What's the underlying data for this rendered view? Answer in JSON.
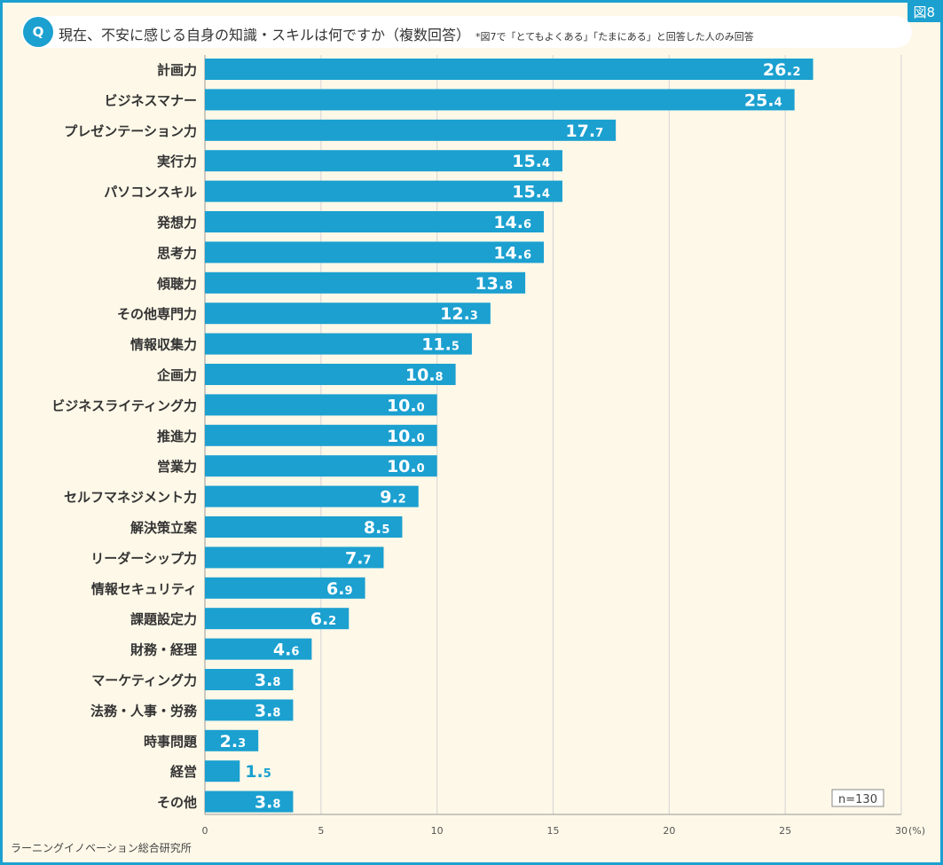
{
  "figure_label": "図8",
  "q_badge": "Q",
  "title": "現在、不安に感じる自身の知識・スキルは何ですか（複数回答）",
  "title_note": "*図7で「とてもよくある」「たまにある」と回答した人のみ回答",
  "sample_size": "n=130",
  "source": "ラーニングイノベーション総合研究所",
  "colors": {
    "bar": "#1ba0d0",
    "accent": "#1ba0d0",
    "background": "#fdf8e8"
  },
  "chart_data": {
    "type": "bar",
    "orientation": "horizontal",
    "categories": [
      "計画力",
      "ビジネスマナー",
      "プレゼンテーション力",
      "実行力",
      "パソコンスキル",
      "発想力",
      "思考力",
      "傾聴力",
      "その他専門力",
      "情報収集力",
      "企画力",
      "ビジネスライティング力",
      "推進力",
      "営業力",
      "セルフマネジメント力",
      "解決策立案",
      "リーダーシップ力",
      "情報セキュリティ",
      "課題設定力",
      "財務・経理",
      "マーケティング力",
      "法務・人事・労務",
      "時事問題",
      "経営",
      "その他"
    ],
    "values": [
      26.2,
      25.4,
      17.7,
      15.4,
      15.4,
      14.6,
      14.6,
      13.8,
      12.3,
      11.5,
      10.8,
      10.0,
      10.0,
      10.0,
      9.2,
      8.5,
      7.7,
      6.9,
      6.2,
      4.6,
      3.8,
      3.8,
      2.3,
      1.5,
      3.8
    ],
    "xlim": [
      0,
      30
    ],
    "xticks": [
      "0",
      "5",
      "10",
      "15",
      "20",
      "25",
      "30"
    ],
    "x_unit": "(%)",
    "grid": true
  }
}
